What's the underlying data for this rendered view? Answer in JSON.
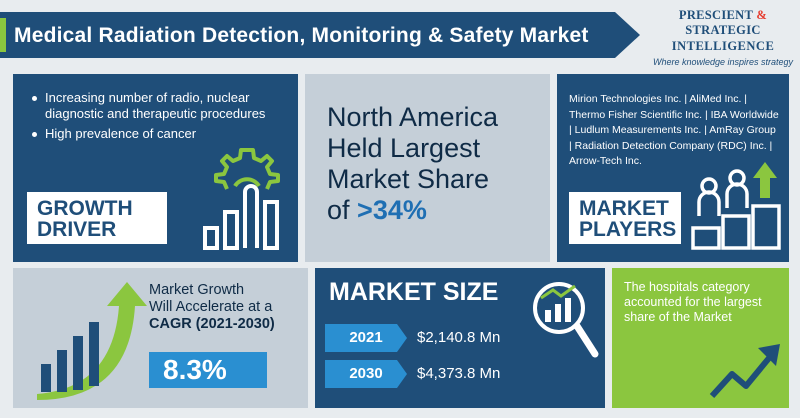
{
  "header": {
    "title": "Medical Radiation Detection, Monitoring & Safety Market",
    "logo": {
      "line1_a": "PRESCIENT",
      "line1_amp": "&",
      "line1_b": "STRATEGIC",
      "line2": "INTELLIGENCE",
      "tagline": "Where knowledge inspires strategy"
    }
  },
  "growth_driver": {
    "bullets": [
      "Increasing number of radio, nuclear diagnostic and therapeutic procedures",
      "High prevalence of cancer"
    ],
    "label_line1": "GROWTH",
    "label_line2": "DRIVER",
    "icon": "gear-bar-chart-icon"
  },
  "north_america": {
    "line1": "North America",
    "line2": "Held Largest",
    "line3": "Market Share",
    "prefix": "of",
    "value": ">34%"
  },
  "market_players": {
    "companies": "Mirion Technologies Inc. | AliMed Inc. | Thermo Fisher Scientific Inc. | IBA Worldwide | Ludlum Measurements Inc. | AmRay Group | Radiation Detection Company (RDC) Inc. | Arrow-Tech Inc.",
    "label_line1": "MARKET",
    "label_line2": "PLAYERS",
    "icon": "podium-people-icon"
  },
  "cagr": {
    "line1": "Market Growth",
    "line2": "Will Accelerate at a",
    "line3": "CAGR (2021-2030)",
    "value": "8.3%",
    "icon": "growth-arrow-bars-icon"
  },
  "market_size": {
    "title": "MARKET SIZE",
    "rows": [
      {
        "year": "2021",
        "value": "$2,140.8 Mn"
      },
      {
        "year": "2030",
        "value": "$4,373.8 Mn"
      }
    ],
    "icon": "magnifier-chart-icon"
  },
  "hospitals": {
    "text": "The hospitals category accounted for the largest share of the Market",
    "icon": "trend-arrow-icon"
  },
  "colors": {
    "navy": "#1f4e79",
    "green": "#8bc63f",
    "blue": "#2a8fd1",
    "light_panel": "#c5cfd8",
    "logo_red": "#e63b2e"
  }
}
